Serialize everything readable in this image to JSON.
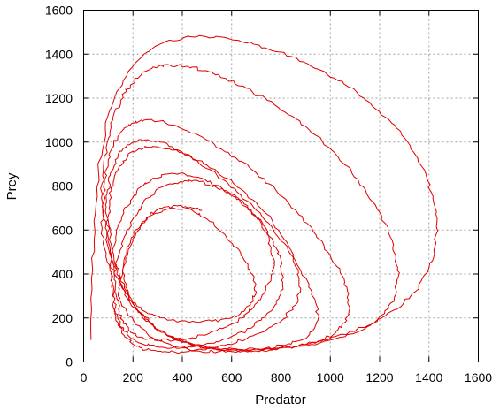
{
  "chart_data": {
    "type": "line",
    "title": "",
    "xlabel": "Predator",
    "ylabel": "Prey",
    "xlim": [
      0,
      1600
    ],
    "ylim": [
      0,
      1600
    ],
    "xticks": [
      "0",
      "200",
      "400",
      "600",
      "800",
      "1000",
      "1200",
      "1400",
      "1600"
    ],
    "yticks": [
      "0",
      "200",
      "400",
      "600",
      "800",
      "1000",
      "1200",
      "1400",
      "1600"
    ],
    "grid": true,
    "legend": "none",
    "series_color": "#e00000",
    "series": [
      {
        "x": [
          480,
          420,
          340,
          260,
          210,
          175,
          160,
          170,
          200,
          260,
          340,
          430,
          520,
          600,
          650,
          680,
          700,
          690,
          660,
          620,
          560,
          500,
          440,
          380,
          320,
          270,
          230,
          200,
          170,
          150,
          140,
          145,
          160,
          190,
          240,
          300,
          370,
          440,
          510,
          580,
          640,
          690,
          730,
          760,
          770,
          760,
          740,
          700,
          650,
          590,
          530,
          470,
          410,
          350,
          290,
          240,
          200,
          165,
          140,
          125,
          120,
          130,
          150,
          185,
          230,
          290,
          360,
          430,
          510,
          590,
          660,
          720,
          770,
          800,
          810,
          800,
          770,
          730,
          680,
          620,
          550,
          480,
          410,
          340,
          280,
          230,
          190,
          155,
          130,
          115,
          110,
          115,
          130,
          160,
          200,
          255,
          320,
          395,
          480,
          570,
          660,
          740,
          810,
          860,
          880,
          870,
          840,
          790,
          730,
          660,
          580,
          500,
          420,
          345,
          280,
          225,
          180,
          145,
          120,
          105,
          100,
          110,
          130,
          165,
          215,
          280,
          355,
          440,
          535,
          635,
          730,
          815,
          885,
          930,
          950,
          945,
          920,
          880,
          830,
          770,
          700,
          620,
          540,
          460,
          380,
          310,
          250,
          200,
          160,
          128,
          108,
          95,
          92,
          100,
          120,
          155,
          205,
          270,
          350,
          440,
          540,
          650,
          760,
          860,
          950,
          1020,
          1060,
          1080,
          1070,
          1040,
          990,
          930,
          860,
          780,
          700,
          615,
          530,
          450,
          375,
          305,
          245,
          195,
          155,
          122,
          100,
          85,
          80,
          88,
          105,
          135,
          180,
          240,
          315,
          405,
          505,
          615,
          730,
          845,
          955,
          1060,
          1150,
          1220,
          1260,
          1275,
          1265,
          1235,
          1190,
          1135,
          1070,
          995,
          915,
          830,
          745,
          660,
          575,
          495,
          420,
          350,
          290,
          235,
          190,
          150,
          118,
          95,
          80,
          72,
          75,
          90,
          115,
          155,
          210,
          280,
          365,
          465,
          575,
          695,
          820,
          945,
          1065,
          1175,
          1270,
          1345,
          1395,
          1420,
          1430,
          1420,
          1395,
          1355,
          1300,
          1235,
          1160,
          1075,
          985,
          890,
          790,
          690,
          590,
          495,
          405,
          320,
          245,
          180,
          128,
          88,
          60,
          42,
          32,
          30
        ],
        "y": [
          690,
          700,
          695,
          660,
          600,
          520,
          430,
          340,
          270,
          220,
          190,
          180,
          185,
          200,
          230,
          270,
          320,
          380,
          450,
          520,
          590,
          650,
          690,
          710,
          700,
          670,
          620,
          550,
          470,
          380,
          300,
          230,
          175,
          135,
          110,
          100,
          100,
          110,
          130,
          160,
          200,
          250,
          310,
          380,
          450,
          520,
          590,
          660,
          720,
          770,
          800,
          820,
          825,
          810,
          775,
          720,
          650,
          570,
          480,
          390,
          300,
          220,
          160,
          115,
          85,
          70,
          65,
          70,
          85,
          110,
          145,
          190,
          245,
          310,
          385,
          465,
          545,
          620,
          690,
          750,
          800,
          835,
          855,
          855,
          835,
          795,
          735,
          660,
          570,
          470,
          370,
          275,
          190,
          125,
          80,
          55,
          45,
          45,
          55,
          75,
          105,
          145,
          195,
          260,
          335,
          420,
          510,
          600,
          685,
          765,
          835,
          895,
          940,
          970,
          980,
          970,
          940,
          890,
          820,
          735,
          640,
          540,
          435,
          335,
          245,
          170,
          115,
          80,
          60,
          55,
          60,
          75,
          100,
          140,
          190,
          255,
          330,
          415,
          505,
          600,
          690,
          775,
          850,
          915,
          965,
          1000,
          1010,
          1000,
          970,
          920,
          850,
          765,
          670,
          565,
          455,
          350,
          255,
          175,
          115,
          75,
          55,
          50,
          55,
          70,
          95,
          130,
          180,
          245,
          320,
          405,
          500,
          595,
          690,
          780,
          860,
          930,
          990,
          1040,
          1075,
          1095,
          1100,
          1085,
          1050,
          995,
          920,
          830,
          725,
          610,
          495,
          385,
          285,
          200,
          135,
          90,
          65,
          55,
          55,
          65,
          85,
          115,
          160,
          220,
          295,
          385,
          485,
          590,
          695,
          795,
          890,
          975,
          1055,
          1125,
          1190,
          1245,
          1290,
          1325,
          1345,
          1350,
          1340,
          1310,
          1260,
          1190,
          1100,
          995,
          875,
          745,
          610,
          480,
          360,
          255,
          170,
          110,
          70,
          50,
          45,
          50,
          65,
          90,
          125,
          175,
          240,
          320,
          410,
          510,
          615,
          720,
          825,
          925,
          1020,
          1105,
          1180,
          1250,
          1310,
          1365,
          1410,
          1445,
          1470,
          1480,
          1475,
          1450,
          1400,
          1320,
          1210,
          1060,
          870,
          640,
          380,
          100
        ]
      }
    ]
  }
}
